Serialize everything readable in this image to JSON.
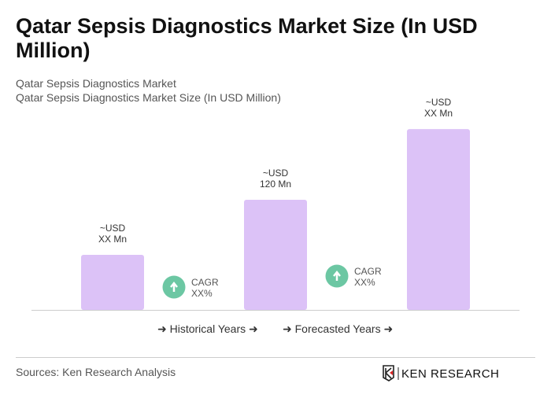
{
  "title": "Qatar Sepsis Diagnostics Market Size (In USD Million)",
  "subtitle1": "Qatar Sepsis Diagnostics Market",
  "subtitle2": "Qatar Sepsis Diagnostics Market Size (In USD Million)",
  "chart_data": {
    "type": "bar",
    "categories": [
      "",
      "",
      ""
    ],
    "values": [
      60,
      120,
      197
    ],
    "labels": [
      [
        "~USD",
        "XX Mn"
      ],
      [
        "~USD",
        "120 Mn"
      ],
      [
        "~USD",
        "XX Mn"
      ]
    ],
    "bar_color": "#dcc2f7",
    "cagr": [
      {
        "label": "CAGR",
        "value": "XX%"
      },
      {
        "label": "CAGR",
        "value": "XX%"
      }
    ],
    "cagr_color": "#6cc7a3",
    "grid": false
  },
  "legend": {
    "historical": "Historical Years",
    "forecasted": "Forecasted Years"
  },
  "sources": "Sources: Ken Research Analysis",
  "logo_text": "KEN RESEARCH"
}
